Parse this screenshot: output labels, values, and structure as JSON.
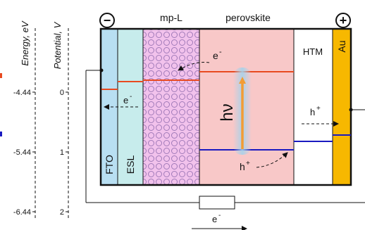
{
  "axes": {
    "energy": {
      "label": "Energy, eV",
      "ticks": [
        {
          "value": 0,
          "label": "-4.44"
        },
        {
          "value": 1,
          "label": "-5.44"
        },
        {
          "value": 2,
          "label": "-6.44"
        }
      ]
    },
    "potential": {
      "label": "Potential, V",
      "ticks": [
        {
          "value": 0,
          "label": "0"
        },
        {
          "value": 1,
          "label": "1"
        },
        {
          "value": 2,
          "label": "2"
        }
      ]
    }
  },
  "terminals": {
    "negative": "−",
    "positive": "+"
  },
  "layers": {
    "fto": "FTO",
    "esl": "ESL",
    "mpl": "mp-L",
    "perovskite": "perovskite",
    "htm": "HTM",
    "au": "Au"
  },
  "labels": {
    "photon": "hν",
    "electron": "e",
    "hole": "h",
    "minus": "-",
    "plus": "+"
  },
  "colors": {
    "fto": "#b8dff2",
    "esl": "#c7ecec",
    "mpl": "#f2c2ec",
    "mpl_circle": "#a07ab8",
    "perovskite": "#f8c8c8",
    "htm": "#ffffff",
    "au": "#f7b800",
    "conduction_band": "#e84a20",
    "valence_band": "#1a1ac0",
    "photon_arrow": "#f39c34",
    "glow": "#a6d2ea"
  }
}
